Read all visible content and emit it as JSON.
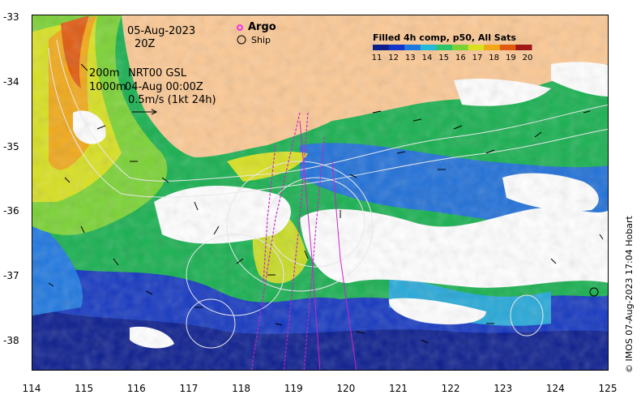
{
  "map": {
    "date": "05-Aug-2023",
    "hour": "20Z",
    "depth_200": "200m",
    "depth_1000": "1000m",
    "product": "NRT00 GSL",
    "product_time": "04-Aug 00:00Z",
    "scale_label": "0.5m/s (1kt 24h)",
    "legend_argo": "Argo",
    "legend_ship": "Ship",
    "copyright": "© IMOS 07-Aug-2023 17:04 Hobart"
  },
  "axes": {
    "x_ticks": [
      "114",
      "115",
      "116",
      "117",
      "118",
      "119",
      "120",
      "121",
      "122",
      "123",
      "124",
      "125"
    ],
    "y_ticks": [
      "-33",
      "-34",
      "-35",
      "-36",
      "-37",
      "-38"
    ]
  },
  "colorbar": {
    "title": "Filled 4h comp, p50, All Sats",
    "labels": [
      "11",
      "12",
      "13",
      "14",
      "15",
      "16",
      "17",
      "18",
      "19",
      "20"
    ],
    "colors": [
      "#0a1f8c",
      "#1234c8",
      "#1f78e0",
      "#25b8d8",
      "#2cc46a",
      "#7ad234",
      "#d8e020",
      "#f0a818",
      "#e05a10",
      "#a01818"
    ]
  },
  "colors": {
    "land": "#fbc894",
    "cloud": "#ffffff"
  }
}
